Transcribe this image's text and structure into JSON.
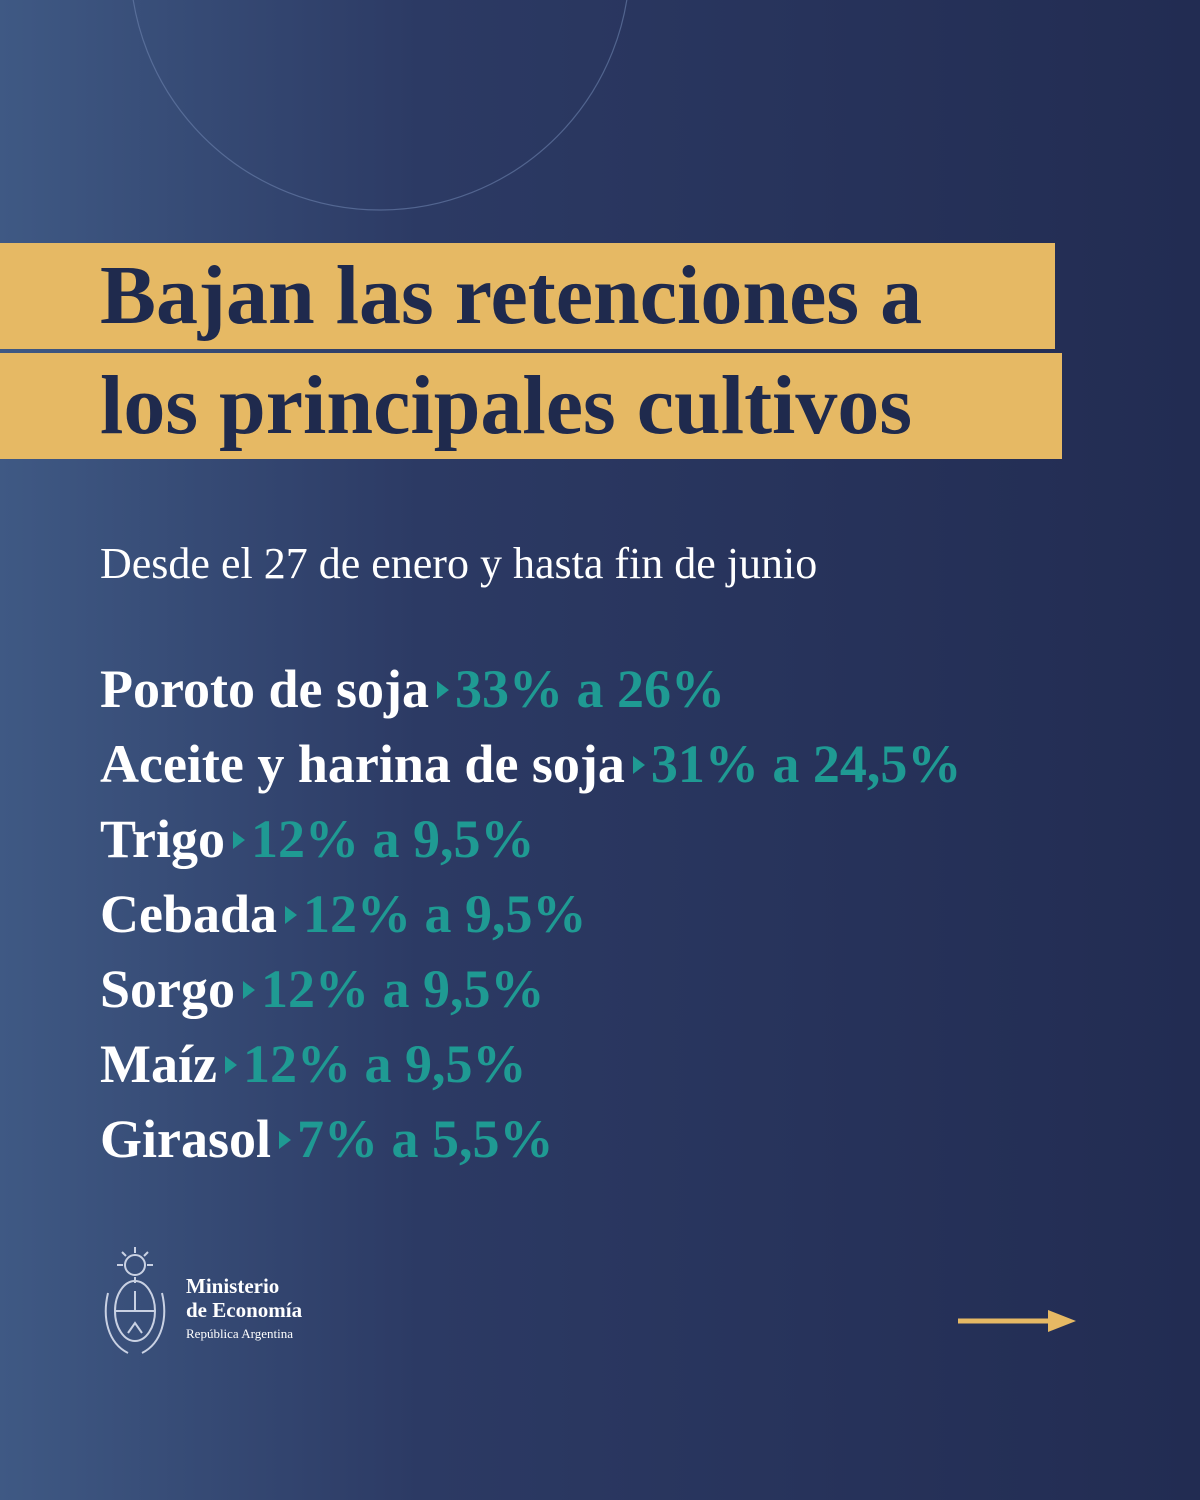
{
  "title": {
    "lines": [
      "Bajan las retenciones a",
      "los principales cultivos"
    ]
  },
  "subtitle": "Desde el 27 de enero y hasta fin de junio",
  "items": [
    {
      "name": "Poroto de soja",
      "rate": "33% a 26%"
    },
    {
      "name": "Aceite y harina de soja",
      "rate": "31% a 24,5%"
    },
    {
      "name": "Trigo",
      "rate": "12% a 9,5%"
    },
    {
      "name": "Cebada",
      "rate": "12% a 9,5%"
    },
    {
      "name": "Sorgo",
      "rate": "12% a 9,5%"
    },
    {
      "name": "Maíz",
      "rate": "12% a 9,5%"
    },
    {
      "name": "Girasol",
      "rate": "7% a 5,5%"
    }
  ],
  "footer": {
    "line1": "Ministerio",
    "line2": "de Economía",
    "line3": "República Argentina"
  }
}
